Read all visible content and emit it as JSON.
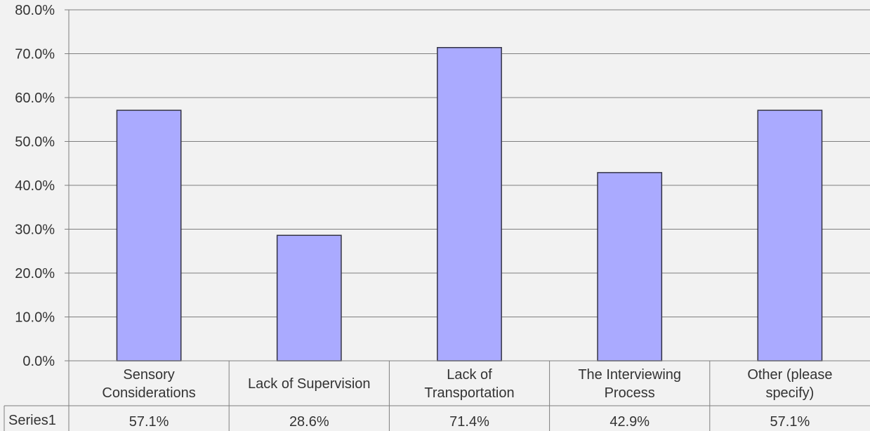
{
  "chart_data": {
    "type": "bar",
    "title": "",
    "xlabel": "",
    "ylabel": "",
    "categories": [
      [
        "Sensory",
        "Considerations"
      ],
      [
        "Lack of Supervision"
      ],
      [
        "Lack of",
        "Transportation"
      ],
      [
        "The Interviewing",
        "Process"
      ],
      [
        "Other (please",
        "specify)"
      ]
    ],
    "series": [
      {
        "name": "Series1",
        "values": [
          57.1,
          28.6,
          71.4,
          42.9,
          57.1
        ],
        "value_labels": [
          "57.1%",
          "28.6%",
          "71.4%",
          "42.9%",
          "57.1%"
        ]
      }
    ],
    "ylim": [
      0,
      80
    ],
    "yticks": [
      "0.0%",
      "10.0%",
      "20.0%",
      "30.0%",
      "40.0%",
      "50.0%",
      "60.0%",
      "70.0%",
      "80.0%"
    ],
    "grid": true,
    "legend": "data-table-below",
    "colors": {
      "bar_fill": "#aaaaff",
      "bar_stroke": "#333344",
      "grid": "#7f7f7f",
      "background": "#f2f2f2",
      "text": "#333333"
    }
  }
}
